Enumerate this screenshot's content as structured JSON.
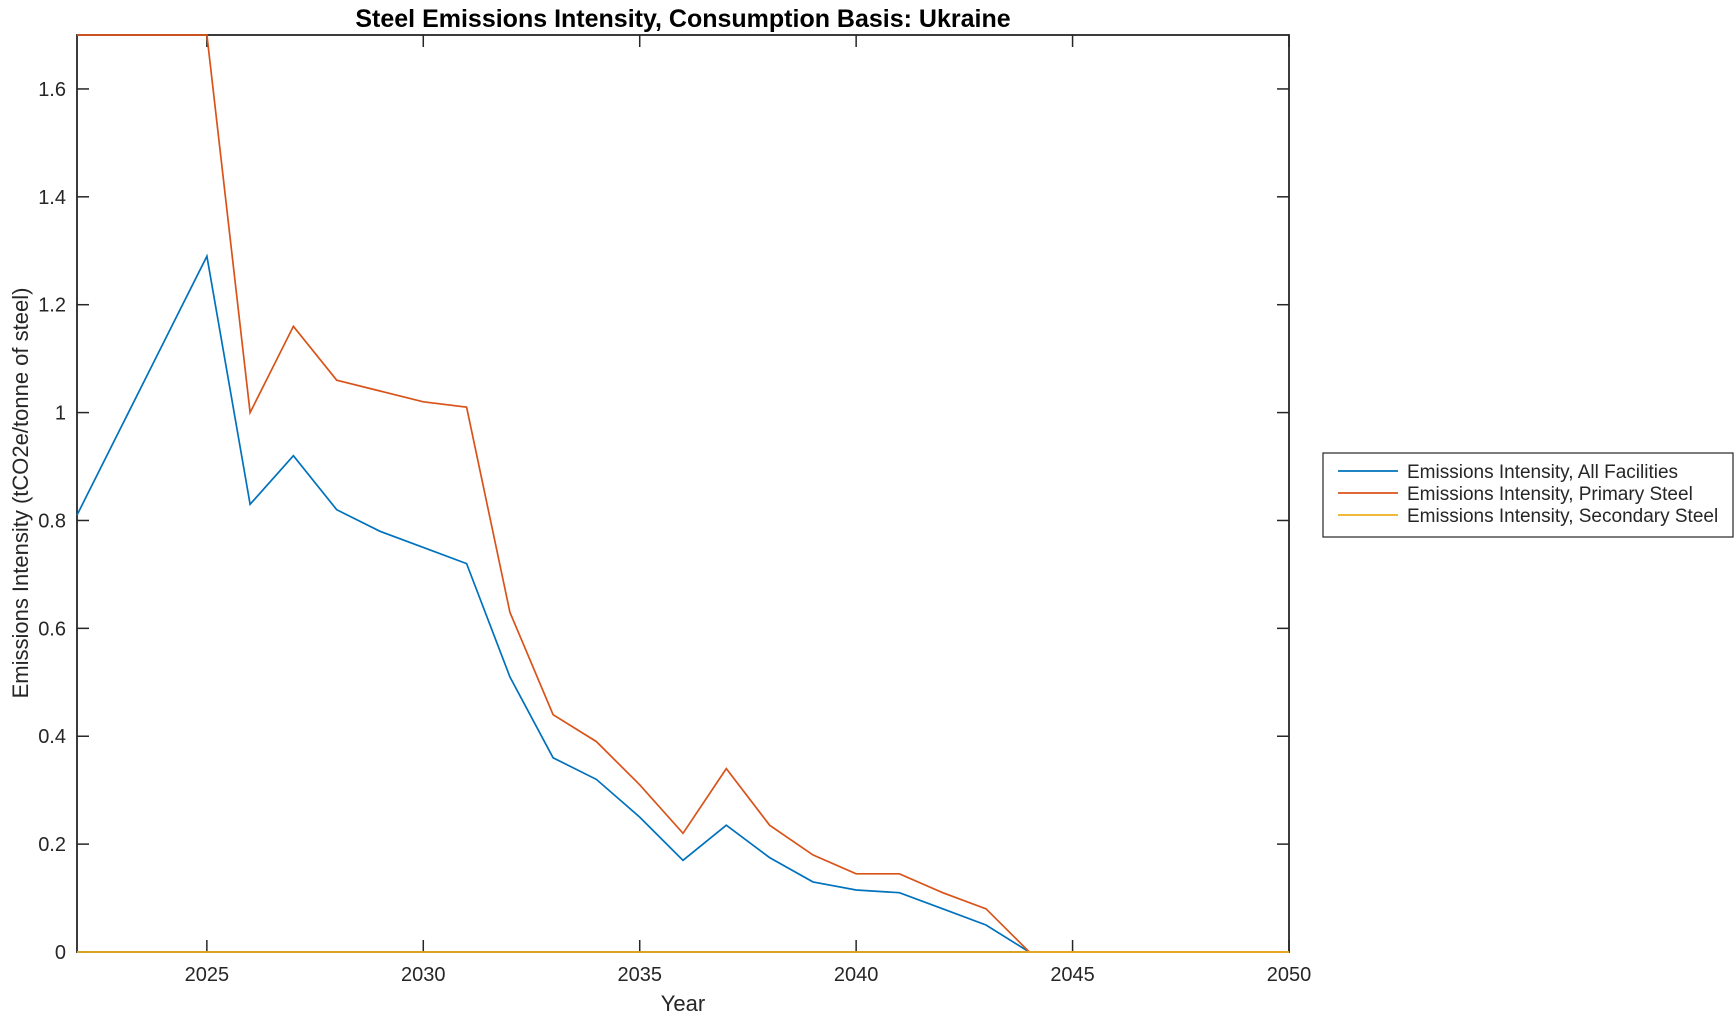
{
  "chart_data": {
    "type": "line",
    "title": "Steel Emissions Intensity, Consumption Basis: Ukraine",
    "xlabel": "Year",
    "ylabel": "Emissions Intensity (tCO2e/tonne of steel)",
    "xlim": [
      2022,
      2050
    ],
    "ylim": [
      0,
      1.7
    ],
    "xticks": [
      2025,
      2030,
      2035,
      2040,
      2045,
      2050
    ],
    "yticks": [
      0,
      0.2,
      0.4,
      0.6,
      0.8,
      1,
      1.2,
      1.4,
      1.6
    ],
    "grid": false,
    "legend_position": "outside-right",
    "axis_color": "#262626",
    "x": [
      2022,
      2023,
      2024,
      2025,
      2026,
      2027,
      2028,
      2029,
      2030,
      2031,
      2032,
      2033,
      2034,
      2035,
      2036,
      2037,
      2038,
      2039,
      2040,
      2041,
      2042,
      2043,
      2044,
      2045,
      2046,
      2047,
      2048,
      2049,
      2050
    ],
    "series": [
      {
        "name": "Emissions Intensity, All Facilities",
        "color": "#0072BD",
        "values": [
          0.81,
          0.97,
          1.13,
          1.29,
          0.83,
          0.92,
          0.82,
          0.78,
          0.75,
          0.72,
          0.51,
          0.36,
          0.32,
          0.25,
          0.17,
          0.235,
          0.175,
          0.13,
          0.115,
          0.11,
          0.08,
          0.05,
          0,
          0,
          0,
          0,
          0,
          0,
          0
        ]
      },
      {
        "name": "Emissions Intensity, Primary Steel",
        "color": "#D95319",
        "values": [
          1.7,
          1.7,
          1.7,
          1.7,
          1.0,
          1.16,
          1.06,
          1.04,
          1.02,
          1.01,
          0.63,
          0.44,
          0.39,
          0.31,
          0.22,
          0.34,
          0.235,
          0.18,
          0.145,
          0.145,
          0.11,
          0.08,
          0,
          0,
          0,
          0,
          0,
          0,
          0
        ]
      },
      {
        "name": "Emissions Intensity, Secondary Steel",
        "color": "#EDB120",
        "values": [
          0,
          0,
          0,
          0,
          0,
          0,
          0,
          0,
          0,
          0,
          0,
          0,
          0,
          0,
          0,
          0,
          0,
          0,
          0,
          0,
          0,
          0,
          0,
          0,
          0,
          0,
          0,
          0,
          0
        ]
      }
    ]
  }
}
